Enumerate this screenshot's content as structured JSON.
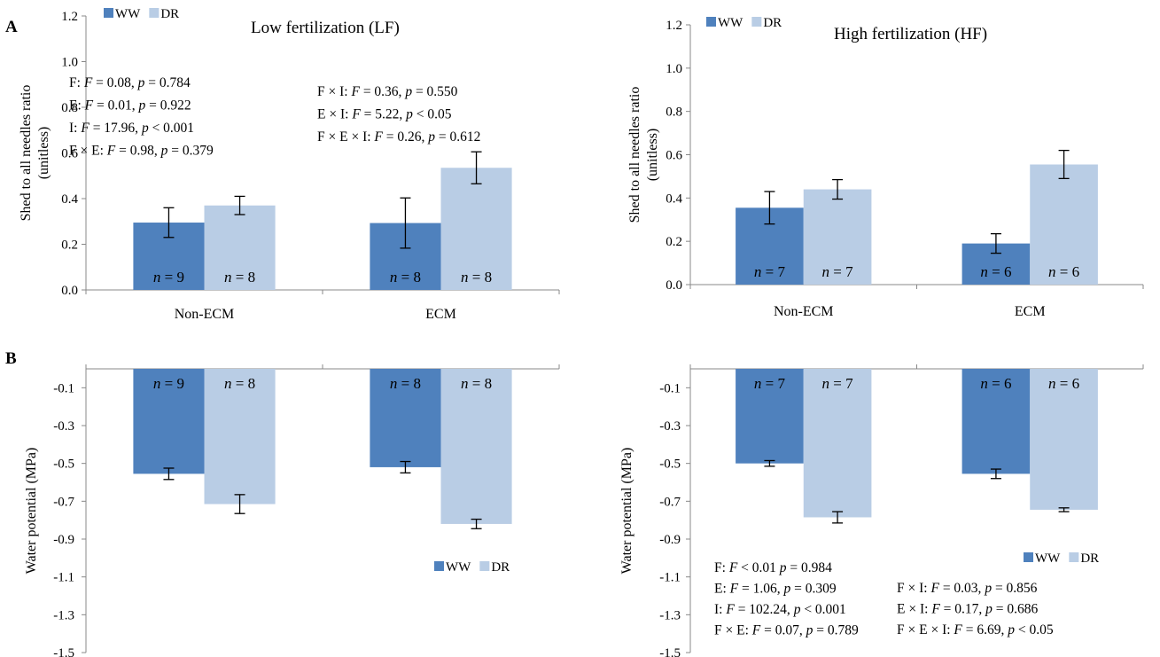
{
  "panel_labels": [
    "A",
    "B"
  ],
  "colors": {
    "WW": "#4f81bd",
    "DR": "#b9cde5"
  },
  "chart_data": [
    {
      "type": "bar",
      "panel": "A",
      "title": "Low fertilization (LF)",
      "ylabel_lines": [
        "Shed to all needles ratio",
        "(unitless)"
      ],
      "categories": [
        "Non-ECM",
        "ECM"
      ],
      "ylim": [
        0,
        1.2
      ],
      "yticks": [
        "0.0",
        "0.2",
        "0.4",
        "0.6",
        "0.8",
        "1.0",
        "1.2"
      ],
      "series": [
        {
          "name": "WW",
          "values": [
            0.295,
            0.293
          ],
          "errors": [
            0.065,
            0.11
          ],
          "n": [
            "n = 9",
            "n = 8"
          ]
        },
        {
          "name": "DR",
          "values": [
            0.37,
            0.535
          ],
          "errors": [
            0.04,
            0.07
          ],
          "n": [
            "n = 8",
            "n = 8"
          ]
        }
      ],
      "legend_position": "top-left",
      "stats_left": [
        "F: F = 0.08, p = 0.784",
        "E: F = 0.01, p = 0.922",
        "I: F = 17.96, p < 0.001",
        "F × E: F = 0.98, p  = 0.379"
      ],
      "stats_right": [
        "F × I: F = 0.36, p = 0.550",
        "E × I: F = 5.22, p < 0.05",
        "F × E × I: F = 0.26, p = 0.612"
      ]
    },
    {
      "type": "bar",
      "panel": "A",
      "title": "High fertilization (HF)",
      "ylabel_lines": [
        "Shed to all needles ratio",
        "(unitless)"
      ],
      "categories": [
        "Non-ECM",
        "ECM"
      ],
      "ylim": [
        0,
        1.2
      ],
      "yticks": [
        "0.0",
        "0.2",
        "0.4",
        "0.6",
        "0.8",
        "1.0",
        "1.2"
      ],
      "series": [
        {
          "name": "WW",
          "values": [
            0.355,
            0.19
          ],
          "errors": [
            0.075,
            0.045
          ],
          "n": [
            "n = 7",
            "n = 6"
          ]
        },
        {
          "name": "DR",
          "values": [
            0.44,
            0.555
          ],
          "errors": [
            0.045,
            0.065
          ],
          "n": [
            "n = 7",
            "n = 6"
          ]
        }
      ],
      "legend_position": "top-left"
    },
    {
      "type": "bar",
      "panel": "B",
      "title": "",
      "ylabel_lines": [
        "Water potential (MPa)"
      ],
      "categories": [
        "Non-ECM",
        "ECM"
      ],
      "ylim": [
        -1.5,
        0.0
      ],
      "yticks": [
        "-1.5",
        "-1.3",
        "-1.1",
        "-0.9",
        "-0.7",
        "-0.5",
        "-0.3",
        "-0.1"
      ],
      "series": [
        {
          "name": "WW",
          "values": [
            -0.555,
            -0.52
          ],
          "errors": [
            0.03,
            0.03
          ],
          "n": [
            "n = 9",
            "n = 8"
          ]
        },
        {
          "name": "DR",
          "values": [
            -0.715,
            -0.82
          ],
          "errors": [
            0.05,
            0.025
          ],
          "n": [
            "n = 8",
            "n = 8"
          ]
        }
      ],
      "legend_position": "center-right"
    },
    {
      "type": "bar",
      "panel": "B",
      "title": "",
      "ylabel_lines": [
        "Water potential (MPa)"
      ],
      "categories": [
        "Non-ECM",
        "ECM"
      ],
      "ylim": [
        -1.5,
        0.0
      ],
      "yticks": [
        "-1.5",
        "-1.3",
        "-1.1",
        "-0.9",
        "-0.7",
        "-0.5",
        "-0.3",
        "-0.1"
      ],
      "series": [
        {
          "name": "WW",
          "values": [
            -0.5,
            -0.555
          ],
          "errors": [
            0.015,
            0.025
          ],
          "n": [
            "n = 7",
            "n = 6"
          ]
        },
        {
          "name": "DR",
          "values": [
            -0.785,
            -0.745
          ],
          "errors": [
            0.03,
            0.01
          ],
          "n": [
            "n = 7",
            "n = 6"
          ]
        }
      ],
      "legend_position": "center-right",
      "stats_left": [
        "F: F < 0.01 p = 0.984",
        "E: F = 1.06, p = 0.309",
        "I: F = 102.24, p < 0.001",
        "F × E: F = 0.07, p = 0.789"
      ],
      "stats_right": [
        "F × I: F = 0.03, p = 0.856",
        "E × I: F = 0.17, p = 0.686",
        "F × E × I: F = 6.69, p < 0.05"
      ]
    }
  ]
}
